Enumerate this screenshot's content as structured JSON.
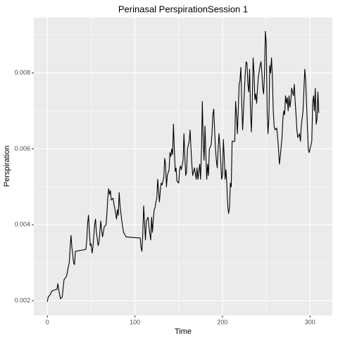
{
  "chart_data": {
    "type": "line",
    "title": "Perinasal PerspirationSession 1",
    "x_label": "Time",
    "y_label": "Perspiration",
    "xlim": [
      -15.5,
      325.5
    ],
    "ylim": [
      0.00161,
      0.00946
    ],
    "xticks": [
      0,
      100,
      200,
      300
    ],
    "yticks": [
      0.002,
      0.004,
      0.006,
      0.008
    ],
    "minor_xticks": [
      50,
      150,
      250
    ],
    "minor_yticks": [
      0.003,
      0.005,
      0.007,
      0.009
    ],
    "grid": true,
    "series": [
      {
        "color": "#000000",
        "x": [
          0,
          1,
          3,
          5,
          8,
          11,
          12,
          13,
          15,
          17,
          19,
          22,
          24,
          25,
          26,
          27,
          28,
          30,
          31,
          32,
          44,
          45,
          46,
          47,
          48,
          49,
          50,
          51,
          52,
          54,
          55,
          56,
          58,
          59,
          61,
          62,
          63,
          65,
          67,
          68,
          69,
          70,
          71,
          72,
          73,
          75,
          76,
          78,
          79,
          80,
          81,
          82,
          83,
          85,
          86,
          87,
          90,
          106,
          107,
          108,
          109,
          110,
          111,
          112,
          113,
          115,
          116,
          118,
          119,
          120,
          121,
          122,
          123,
          124,
          125,
          126,
          127,
          128,
          129,
          130,
          131,
          133,
          134,
          135,
          136,
          137,
          139,
          140,
          141,
          142,
          143,
          144,
          145,
          146,
          147,
          148,
          150,
          151,
          152,
          153,
          155,
          156,
          157,
          158,
          159,
          160,
          162,
          163,
          164,
          165,
          166,
          167,
          168,
          170,
          171,
          172,
          174,
          175,
          176,
          177,
          178,
          179,
          180,
          181,
          182,
          183,
          184,
          185,
          187,
          188,
          189,
          190,
          191,
          192,
          193,
          194,
          195,
          196,
          197,
          199,
          200,
          201,
          202,
          203,
          204,
          205,
          206,
          207,
          208,
          209,
          210,
          211,
          214,
          215,
          216,
          217,
          218,
          219,
          220,
          221,
          222,
          223,
          224,
          226,
          227,
          228,
          229,
          230,
          231,
          232,
          233,
          234,
          235,
          236,
          237,
          238,
          239,
          240,
          241,
          243,
          244,
          245,
          246,
          247,
          248,
          249,
          250,
          251,
          252,
          253,
          254,
          255,
          256,
          257,
          258,
          259,
          260,
          262,
          263,
          264,
          265,
          266,
          268,
          269,
          270,
          271,
          272,
          273,
          274,
          275,
          276,
          277,
          278,
          279,
          280,
          281,
          282,
          283,
          284,
          285,
          286,
          288,
          289,
          290,
          291,
          292,
          294,
          295,
          296,
          297,
          298,
          299,
          300,
          302,
          303,
          304,
          305,
          306,
          307,
          308,
          309,
          310
        ],
        "values": [
          0.00197,
          0.0021,
          0.00215,
          0.00225,
          0.00228,
          0.0023,
          0.00245,
          0.00228,
          0.00205,
          0.0021,
          0.00255,
          0.00265,
          0.0029,
          0.003,
          0.0034,
          0.00372,
          0.0034,
          0.003,
          0.00295,
          0.0033,
          0.00335,
          0.0036,
          0.00405,
          0.00425,
          0.0038,
          0.00345,
          0.0035,
          0.00325,
          0.0034,
          0.004,
          0.00415,
          0.0038,
          0.00345,
          0.00355,
          0.0041,
          0.00385,
          0.00368,
          0.00395,
          0.004,
          0.0043,
          0.0047,
          0.00495,
          0.0048,
          0.0049,
          0.00465,
          0.0047,
          0.00455,
          0.0043,
          0.00415,
          0.0044,
          0.00425,
          0.00485,
          0.0045,
          0.0041,
          0.00395,
          0.0038,
          0.00368,
          0.00365,
          0.0034,
          0.0033,
          0.0038,
          0.0045,
          0.00405,
          0.0036,
          0.0041,
          0.0042,
          0.00395,
          0.0036,
          0.0042,
          0.0038,
          0.00415,
          0.0044,
          0.00445,
          0.0046,
          0.0047,
          0.0052,
          0.0049,
          0.0046,
          0.0049,
          0.0051,
          0.00505,
          0.00525,
          0.00575,
          0.0056,
          0.005,
          0.0053,
          0.00545,
          0.0059,
          0.0058,
          0.006,
          0.00585,
          0.00665,
          0.006,
          0.0054,
          0.0055,
          0.00515,
          0.0051,
          0.00545,
          0.00555,
          0.00545,
          0.0057,
          0.0064,
          0.0058,
          0.0053,
          0.0054,
          0.006,
          0.0062,
          0.0065,
          0.006,
          0.0056,
          0.0053,
          0.0054,
          0.0055,
          0.0052,
          0.0055,
          0.0052,
          0.0056,
          0.0052,
          0.00595,
          0.00725,
          0.0062,
          0.0057,
          0.0066,
          0.0059,
          0.0052,
          0.0056,
          0.0053,
          0.006,
          0.0061,
          0.0064,
          0.0069,
          0.00705,
          0.0065,
          0.006,
          0.0057,
          0.0055,
          0.006,
          0.0064,
          0.0061,
          0.0052,
          0.0053,
          0.00625,
          0.0058,
          0.0052,
          0.00545,
          0.00505,
          0.0045,
          0.0043,
          0.00445,
          0.0051,
          0.005,
          0.0062,
          0.0062,
          0.00725,
          0.0069,
          0.0064,
          0.007,
          0.0077,
          0.0078,
          0.00815,
          0.0072,
          0.0065,
          0.007,
          0.008,
          0.0083,
          0.00825,
          0.0077,
          0.0075,
          0.0081,
          0.007,
          0.00645,
          0.0072,
          0.0084,
          0.008,
          0.0073,
          0.00745,
          0.0072,
          0.0076,
          0.0079,
          0.0082,
          0.0083,
          0.008,
          0.0076,
          0.00745,
          0.008,
          0.0091,
          0.0088,
          0.007,
          0.0064,
          0.0068,
          0.0082,
          0.008,
          0.0084,
          0.0079,
          0.007,
          0.0066,
          0.0065,
          0.00655,
          0.0063,
          0.006,
          0.0056,
          0.0058,
          0.0063,
          0.0068,
          0.007,
          0.0069,
          0.0074,
          0.0072,
          0.00735,
          0.007,
          0.0074,
          0.0071,
          0.00725,
          0.0076,
          0.0075,
          0.0074,
          0.0077,
          0.00725,
          0.0069,
          0.0065,
          0.0063,
          0.0064,
          0.0062,
          0.0066,
          0.0068,
          0.007,
          0.0081,
          0.0078,
          0.0072,
          0.0066,
          0.006,
          0.0059,
          0.006,
          0.0062,
          0.0072,
          0.0074,
          0.007,
          0.0076,
          0.00665,
          0.0068,
          0.0075,
          0.00695
        ]
      }
    ]
  }
}
